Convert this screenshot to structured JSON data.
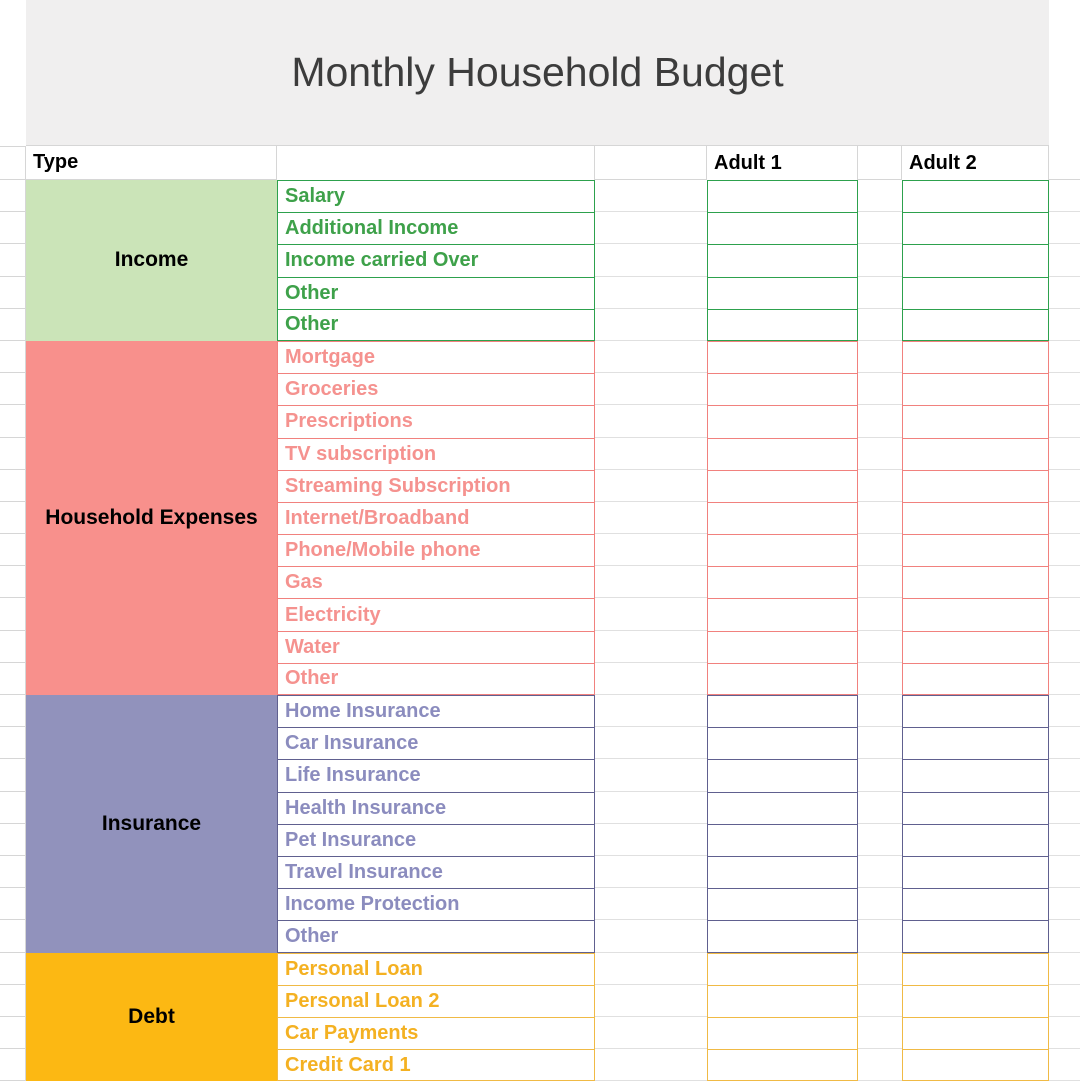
{
  "title": "Monthly Household Budget",
  "header": {
    "type_label": "Type",
    "adult1_label": "Adult 1",
    "adult2_label": "Adult 2"
  },
  "palette": {
    "banner_bg": "#F0EFEF",
    "gridline": "#D6D6D6",
    "title_color": "#3C3C3C",
    "header_text": "#000000"
  },
  "sections": [
    {
      "name": "Income",
      "bg": "#CBE4B8",
      "text_color": "#3EA14A",
      "border_color": "#2DA14D",
      "items": [
        "Salary",
        "Additional Income",
        "Income carried Over",
        "Other",
        "Other"
      ]
    },
    {
      "name": "Household Expenses",
      "bg": "#F8908C",
      "text_color": "#F5928F",
      "border_color": "#F1817E",
      "items": [
        "Mortgage",
        "Groceries",
        "Prescriptions",
        "TV subscription",
        "Streaming Subscription",
        "Internet/Broadband",
        "Phone/Mobile phone",
        "Gas",
        "Electricity",
        "Water",
        "Other"
      ]
    },
    {
      "name": "Insurance",
      "bg": "#9192BC",
      "text_color": "#8B8CBE",
      "border_color": "#60608F",
      "items": [
        "Home Insurance",
        "Car Insurance",
        "Life Insurance",
        "Health Insurance",
        "Pet Insurance",
        "Travel Insurance",
        "Income Protection",
        "Other"
      ]
    },
    {
      "name": "Debt",
      "bg": "#FCB813",
      "text_color": "#F4B122",
      "border_color": "#F0BA45",
      "items": [
        "Personal Loan",
        "Personal Loan 2",
        "Car Payments",
        "Credit Card 1"
      ]
    }
  ]
}
